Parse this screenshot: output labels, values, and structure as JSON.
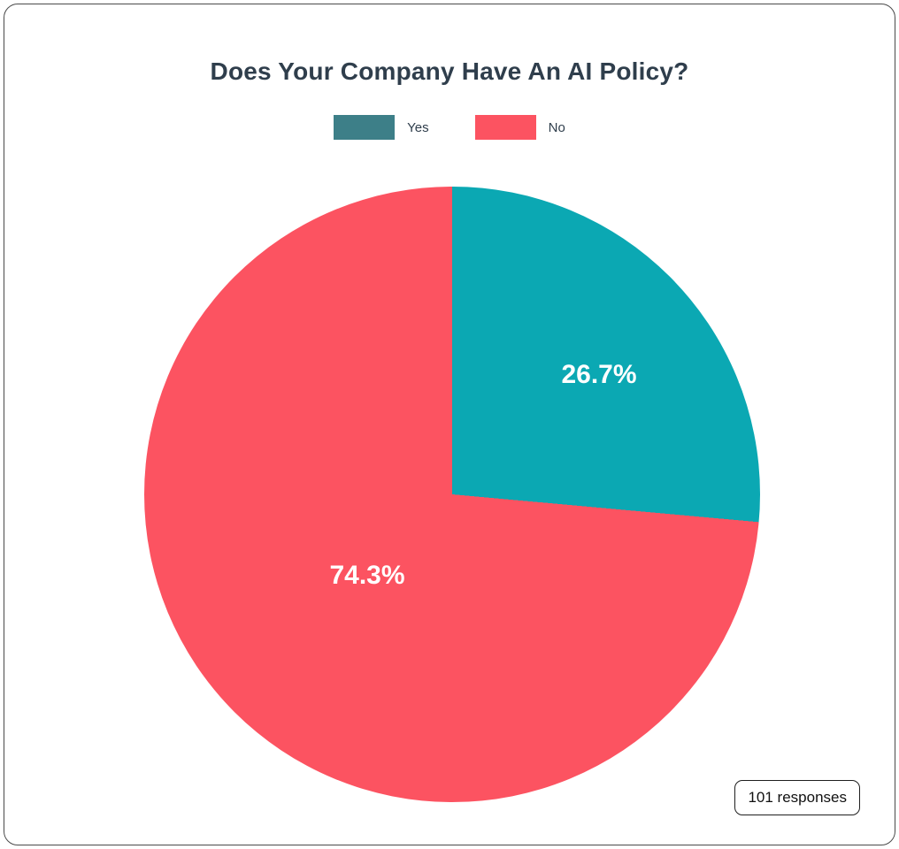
{
  "chart": {
    "title": "Does Your Company Have An AI Policy?",
    "responses_label": "101 responses",
    "legend": [
      {
        "label": "Yes",
        "swatch_color": "#3d7f88"
      },
      {
        "label": "No",
        "swatch_color": "#fc5361"
      }
    ],
    "slices": [
      {
        "label": "Yes",
        "value": 26.7,
        "percent_label": "26.7%",
        "color": "#0ba8b3"
      },
      {
        "label": "No",
        "value": 74.3,
        "percent_label": "74.3%",
        "color": "#fc5361"
      }
    ]
  },
  "chart_data": {
    "type": "pie",
    "title": "Does Your Company Have An AI Policy?",
    "categories": [
      "Yes",
      "No"
    ],
    "values": [
      26.7,
      74.3
    ],
    "value_unit": "percent",
    "data_labels": [
      "26.7%",
      "74.3%"
    ],
    "colors": [
      "#0ba8b3",
      "#fc5361"
    ],
    "legend_entries": [
      "Yes",
      "No"
    ],
    "legend_position": "top",
    "start_angle_deg": 0,
    "direction": "clockwise",
    "annotations": [
      "101 responses"
    ]
  }
}
